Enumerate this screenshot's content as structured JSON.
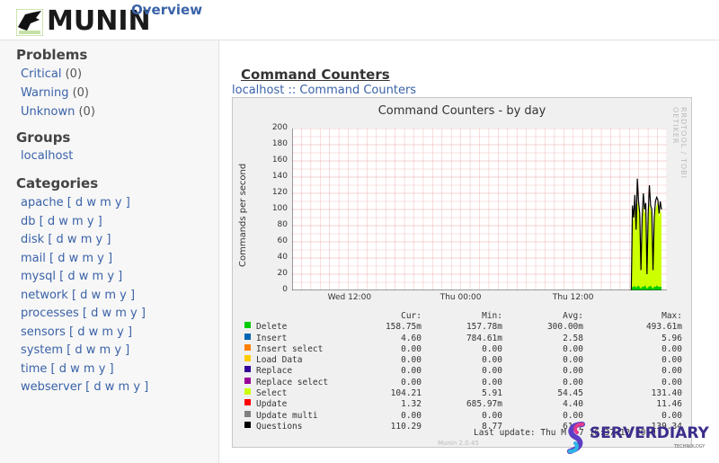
{
  "header": {
    "logo_text": "MUNIN",
    "overview_label": "Overview"
  },
  "sidebar": {
    "problems_heading": "Problems",
    "problems": [
      {
        "label": "Critical",
        "count": "(0)"
      },
      {
        "label": "Warning",
        "count": "(0)"
      },
      {
        "label": "Unknown",
        "count": "(0)"
      }
    ],
    "groups_heading": "Groups",
    "groups": [
      "localhost"
    ],
    "categories_heading": "Categories",
    "period_links": [
      "d",
      "w",
      "m",
      "y"
    ],
    "categories": [
      "apache",
      "db",
      "disk",
      "mail",
      "mysql",
      "network",
      "processes",
      "sensors",
      "system",
      "time",
      "webserver"
    ]
  },
  "main": {
    "title": "Command Counters",
    "breadcrumb_host": "localhost",
    "breadcrumb_sep": " :: ",
    "breadcrumb_page": "Command Counters"
  },
  "chart_data": {
    "type": "area",
    "title": "Command Counters - by day",
    "ylabel": "Commands per second",
    "side_label": "RRDTOOL / TOBI OETIKER",
    "ylim": [
      0,
      200
    ],
    "yticks": [
      0,
      20,
      40,
      60,
      80,
      100,
      120,
      140,
      160,
      180,
      200
    ],
    "xticks": [
      "Wed 12:00",
      "Thu 00:00",
      "Thu 12:00"
    ],
    "xtick_pos": [
      0.155,
      0.455,
      0.755
    ],
    "grid": true,
    "data_start_fraction": 0.905,
    "series": [
      {
        "name": "Select",
        "color": "#ccff00",
        "values": [
          0,
          95,
          85,
          100,
          70,
          110,
          105,
          90,
          20,
          80,
          105,
          95,
          100,
          15,
          90,
          108,
          100,
          95,
          20,
          85,
          100,
          105,
          110,
          90,
          100,
          95
        ]
      },
      {
        "name": "Questions",
        "color": "#000000",
        "values": [
          0,
          105,
          90,
          118,
          75,
          138,
          110,
          95,
          25,
          90,
          120,
          100,
          108,
          20,
          95,
          130,
          105,
          100,
          25,
          90,
          110,
          115,
          112,
          95,
          110,
          100
        ]
      },
      {
        "name": "Delete",
        "color": "#00cc00",
        "values": [
          0,
          5,
          4,
          6,
          3,
          5,
          6,
          4,
          2,
          5,
          4,
          6,
          5,
          2,
          4,
          5,
          6,
          4,
          2,
          5,
          4,
          6,
          5,
          4,
          5,
          4
        ]
      }
    ],
    "legend_header": {
      "cur": "Cur:",
      "min": "Min:",
      "avg": "Avg:",
      "max": "Max:"
    },
    "legend": [
      {
        "name": "Delete",
        "color": "#00cc00",
        "cur": "158.75m",
        "min": "157.78m",
        "avg": "300.00m",
        "max": "493.61m"
      },
      {
        "name": "Insert",
        "color": "#0066b3",
        "cur": "4.60",
        "min": "784.61m",
        "avg": "2.58",
        "max": "5.96"
      },
      {
        "name": "Insert select",
        "color": "#ff8000",
        "cur": "0.00",
        "min": "0.00",
        "avg": "0.00",
        "max": "0.00"
      },
      {
        "name": "Load Data",
        "color": "#ffcc00",
        "cur": "0.00",
        "min": "0.00",
        "avg": "0.00",
        "max": "0.00"
      },
      {
        "name": "Replace",
        "color": "#330099",
        "cur": "0.00",
        "min": "0.00",
        "avg": "0.00",
        "max": "0.00"
      },
      {
        "name": "Replace select",
        "color": "#990099",
        "cur": "0.00",
        "min": "0.00",
        "avg": "0.00",
        "max": "0.00"
      },
      {
        "name": "Select",
        "color": "#ccff00",
        "cur": "104.21",
        "min": "5.91",
        "avg": "54.45",
        "max": "131.40"
      },
      {
        "name": "Update",
        "color": "#ff0000",
        "cur": "1.32",
        "min": "685.97m",
        "avg": "4.40",
        "max": "11.46"
      },
      {
        "name": "Update multi",
        "color": "#808080",
        "cur": "0.00",
        "min": "0.00",
        "avg": "0.00",
        "max": "0.00"
      },
      {
        "name": "Questions",
        "color": "#000000",
        "cur": "110.29",
        "min": "8.77",
        "avg": "61.7",
        "max": "139.34"
      }
    ],
    "last_update": "Last update: Thu M",
    "last_update_tail": "7 16:37:12 2019",
    "version": "Munin 2.0.45"
  },
  "watermark": {
    "text": "SERVERDIARY",
    "sub": "TECHNOLOGY"
  }
}
